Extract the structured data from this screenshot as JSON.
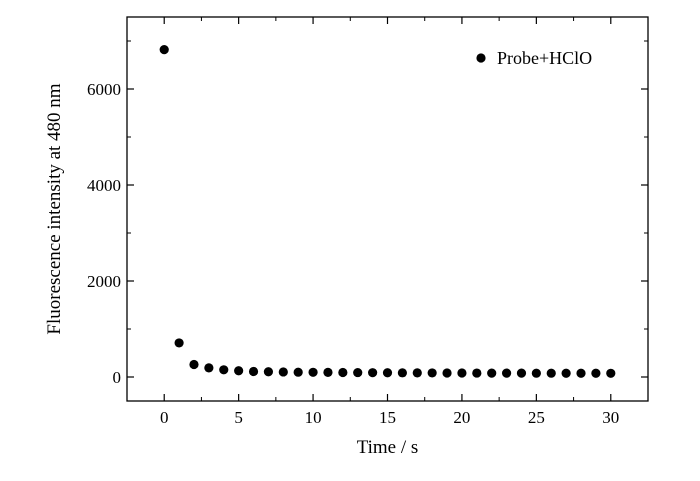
{
  "chart_data": {
    "type": "scatter",
    "xlabel": "Time / s",
    "ylabel": "Fluorescence intensity at 480 nm",
    "xlim": [
      -2.5,
      32.5
    ],
    "ylim": [
      -500,
      7500
    ],
    "xticks": [
      0,
      5,
      10,
      15,
      20,
      25,
      30
    ],
    "yticks": [
      0,
      2000,
      4000,
      6000
    ],
    "grid": false,
    "legend_position": "top-right",
    "marker_color": "#000000",
    "series": [
      {
        "name": "Probe+HClO",
        "x": [
          0,
          1,
          2,
          3,
          4,
          5,
          6,
          7,
          8,
          9,
          10,
          11,
          12,
          13,
          14,
          15,
          16,
          17,
          18,
          19,
          20,
          21,
          22,
          23,
          24,
          25,
          26,
          27,
          28,
          29,
          30
        ],
        "y": [
          6820,
          710,
          260,
          190,
          150,
          130,
          115,
          110,
          105,
          100,
          98,
          96,
          94,
          92,
          90,
          88,
          87,
          86,
          85,
          84,
          83,
          82,
          81,
          80,
          80,
          79,
          79,
          78,
          78,
          78,
          77
        ]
      }
    ]
  }
}
